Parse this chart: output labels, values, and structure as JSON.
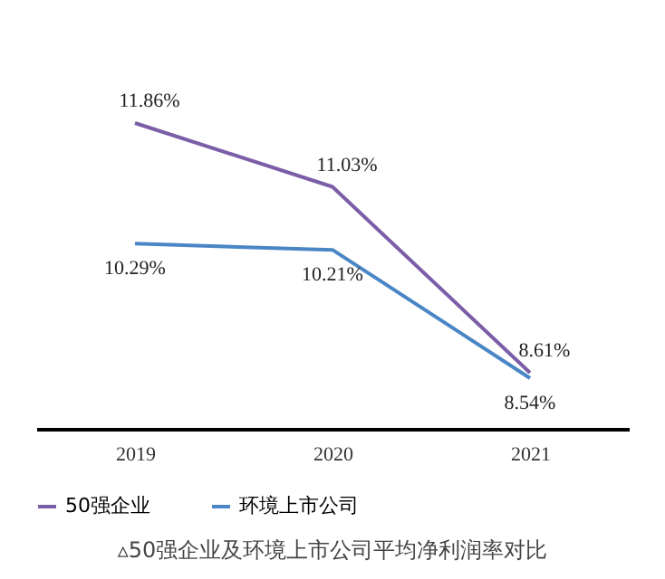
{
  "chart_data": {
    "type": "line",
    "categories": [
      "2019",
      "2020",
      "2021"
    ],
    "series": [
      {
        "name": "50强企业",
        "color": "#7b5ea7",
        "values": [
          11.86,
          11.03,
          8.61
        ],
        "value_labels": [
          "11.86%",
          "11.03%",
          "8.61%"
        ]
      },
      {
        "name": "环境上市公司",
        "color": "#4a86c5",
        "values": [
          10.29,
          10.21,
          8.54
        ],
        "value_labels": [
          "10.29%",
          "10.21%",
          "8.54%"
        ]
      }
    ],
    "tick_labels": "x",
    "legend": "bottom",
    "grid": false,
    "marker": "none",
    "annotations": [
      "▵50强企业及环境上市公司平均净利润率对比"
    ]
  }
}
